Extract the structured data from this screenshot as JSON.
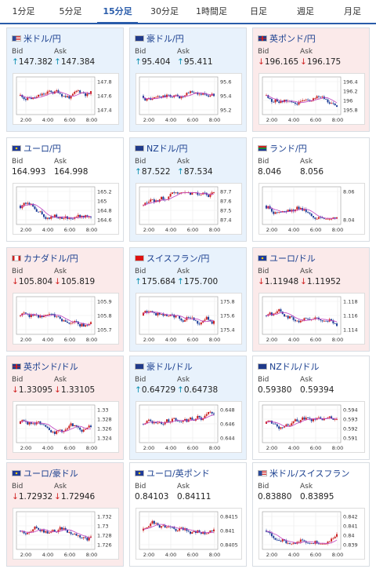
{
  "tabs": [
    {
      "label": "1分足",
      "active": false
    },
    {
      "label": "5分足",
      "active": false
    },
    {
      "label": "15分足",
      "active": true
    },
    {
      "label": "30分足",
      "active": false
    },
    {
      "label": "1時間足",
      "active": false
    },
    {
      "label": "日足",
      "active": false
    },
    {
      "label": "週足",
      "active": false
    },
    {
      "label": "月足",
      "active": false
    }
  ],
  "labels": {
    "bid": "Bid",
    "ask": "Ask"
  },
  "colors": {
    "accent": "#2a5caa",
    "up": "#0a8fb0",
    "down": "#d02020",
    "candle_up": "#cc2222",
    "candle_down": "#1f3f99",
    "ma": "#c040c0",
    "ma2": "#40c0e0"
  },
  "arrows": {
    "up": "↑",
    "down": "↓",
    "none": ""
  },
  "cards": [
    {
      "pair": "米ドル/円",
      "flag": "us",
      "trend": "up",
      "bid": "147.382",
      "ask": "147.384",
      "y_ticks": [
        "147.8",
        "147.6",
        "147.4"
      ],
      "x_ticks": [
        "2:00",
        "4:00",
        "6:00",
        "8:00"
      ]
    },
    {
      "pair": "豪ドル/円",
      "flag": "au",
      "trend": "up",
      "bid": "95.404",
      "ask": "95.411",
      "y_ticks": [
        "95.6",
        "95.4",
        "95.2"
      ],
      "x_ticks": [
        "2:00",
        "4:00",
        "6:00",
        "8:00"
      ]
    },
    {
      "pair": "英ポンド/円",
      "flag": "uk",
      "trend": "down",
      "bid": "196.165",
      "ask": "196.175",
      "y_ticks": [
        "196.4",
        "196.2",
        "196",
        "195.8"
      ],
      "x_ticks": [
        "2:00",
        "4:00",
        "6:00",
        "8:00"
      ]
    },
    {
      "pair": "ユーロ/円",
      "flag": "eu",
      "trend": "none",
      "bid": "164.993",
      "ask": "164.998",
      "y_ticks": [
        "165.2",
        "165",
        "164.8",
        "164.6"
      ],
      "x_ticks": [
        "2:00",
        "4:00",
        "6:00",
        "8:00"
      ]
    },
    {
      "pair": "NZドル/円",
      "flag": "nz",
      "trend": "up",
      "bid": "87.522",
      "ask": "87.534",
      "y_ticks": [
        "87.7",
        "87.6",
        "87.5",
        "87.4"
      ],
      "x_ticks": [
        "2:00",
        "4:00",
        "6:00",
        "8:00"
      ]
    },
    {
      "pair": "ランド/円",
      "flag": "za",
      "trend": "none",
      "bid": "8.046",
      "ask": "8.056",
      "y_ticks": [
        "8.06",
        "8.04"
      ],
      "x_ticks": [
        "2:00",
        "4:00",
        "6:00",
        "8:00"
      ]
    },
    {
      "pair": "カナダドル/円",
      "flag": "ca",
      "trend": "down",
      "bid": "105.804",
      "ask": "105.819",
      "y_ticks": [
        "105.9",
        "105.8",
        "105.7"
      ],
      "x_ticks": [
        "2:00",
        "4:00",
        "6:00",
        "8:00"
      ]
    },
    {
      "pair": "スイスフラン/円",
      "flag": "ch",
      "trend": "up",
      "bid": "175.684",
      "ask": "175.700",
      "y_ticks": [
        "175.8",
        "175.6",
        "175.4"
      ],
      "x_ticks": [
        "2:00",
        "4:00",
        "6:00",
        "8:00"
      ]
    },
    {
      "pair": "ユーロ/ドル",
      "flag": "eu",
      "trend": "down",
      "bid": "1.11948",
      "ask": "1.11952",
      "y_ticks": [
        "1.118",
        "1.116",
        "1.114"
      ],
      "x_ticks": [
        "2:00",
        "4:00",
        "6:00",
        "8:00"
      ]
    },
    {
      "pair": "英ポンド/ドル",
      "flag": "uk",
      "trend": "down",
      "bid": "1.33095",
      "ask": "1.33105",
      "y_ticks": [
        "1.33",
        "1.328",
        "1.326",
        "1.324"
      ],
      "x_ticks": [
        "2:00",
        "4:00",
        "6:00",
        "8:00"
      ]
    },
    {
      "pair": "豪ドル/ドル",
      "flag": "au",
      "trend": "up",
      "bid": "0.64729",
      "ask": "0.64738",
      "y_ticks": [
        "0.648",
        "0.646",
        "0.644"
      ],
      "x_ticks": [
        "2:00",
        "4:00",
        "6:00",
        "8:00"
      ]
    },
    {
      "pair": "NZドル/ドル",
      "flag": "nz",
      "trend": "none",
      "bid": "0.59380",
      "ask": "0.59394",
      "y_ticks": [
        "0.594",
        "0.593",
        "0.592",
        "0.591"
      ],
      "x_ticks": [
        "2:00",
        "4:00",
        "6:00",
        "8:00"
      ]
    },
    {
      "pair": "ユーロ/豪ドル",
      "flag": "eu",
      "trend": "down",
      "bid": "1.72932",
      "ask": "1.72946",
      "y_ticks": [
        "1.732",
        "1.73",
        "1.728",
        "1.726"
      ],
      "x_ticks": [
        "2:00",
        "4:00",
        "6:00",
        "8:00"
      ]
    },
    {
      "pair": "ユーロ/英ポンド",
      "flag": "eu",
      "trend": "none",
      "bid": "0.84103",
      "ask": "0.84111",
      "y_ticks": [
        "0.8415",
        "0.841",
        "0.8405"
      ],
      "x_ticks": [
        "2:00",
        "4:00",
        "6:00",
        "8:00"
      ]
    },
    {
      "pair": "米ドル/スイスフラン",
      "flag": "us",
      "trend": "none",
      "bid": "0.83880",
      "ask": "0.83895",
      "y_ticks": [
        "0.842",
        "0.841",
        "0.84",
        "0.839"
      ],
      "x_ticks": [
        "2:00",
        "4:00",
        "6:00",
        "8:00"
      ]
    }
  ]
}
